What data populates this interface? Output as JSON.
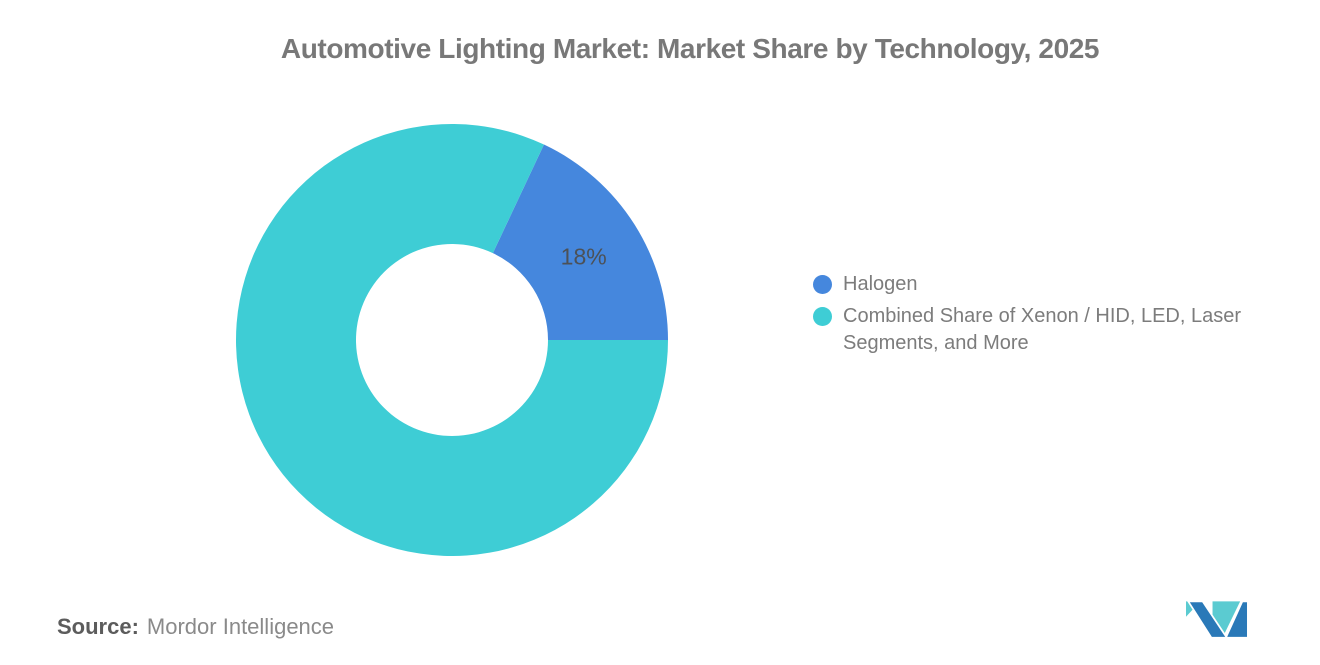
{
  "title": "Automotive Lighting Market: Market Share by Technology, 2025",
  "chart_data": {
    "type": "pie",
    "subtype": "donut",
    "title": "Automotive Lighting Market: Market Share by Technology, 2025",
    "start_angle_deg": 25.2,
    "inner_radius_ratio": 0.445,
    "legend_position": "right",
    "grid": false,
    "segments": [
      {
        "label": "Halogen",
        "value": 18,
        "unit": "%",
        "color": "#4587DD",
        "data_label": "18%"
      },
      {
        "label": "Combined Share of Xenon / HID, LED, Laser Segments, and More",
        "value": 82,
        "unit": "%",
        "color": "#3ECDD5",
        "data_label": ""
      }
    ]
  },
  "legend": {
    "items": [
      {
        "label": "Halogen",
        "color": "#4587DD"
      },
      {
        "label": "Combined Share of Xenon / HID, LED, Laser Segments, and More",
        "color": "#3ECDD5"
      }
    ]
  },
  "source": {
    "label": "Source:",
    "text": "Mordor Intelligence"
  },
  "logo": {
    "name": "Mordor Intelligence",
    "colors": {
      "blue": "#2A79B8",
      "teal": "#5BCBD1"
    }
  },
  "colors": {
    "background": "#FFFFFF",
    "title_text": "#787878",
    "legend_text": "#7C7C7C",
    "slice_label_text": "#4C5157",
    "source_label_text": "#5C5C5C",
    "source_text": "#8A8A8A"
  }
}
